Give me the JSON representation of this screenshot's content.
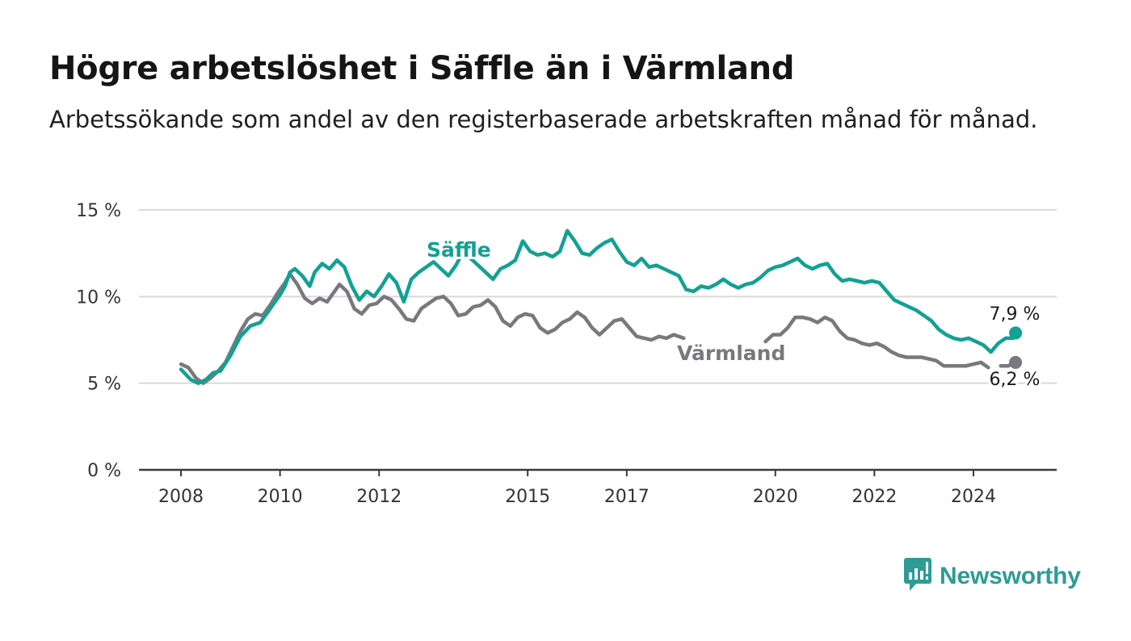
{
  "header": {
    "title": "Högre arbetslöshet i Säffle än i Värmland",
    "subtitle": "Arbetssökande som andel av den registerbaserade arbetskraften månad för månad."
  },
  "brand": {
    "name": "Newsworthy",
    "icon": "bar-chart-speech-bubble-icon",
    "color": "#2e9b95"
  },
  "chart_data": {
    "type": "line",
    "title": "Högre arbetslöshet i Säffle än i Värmland",
    "subtitle": "Arbetssökande som andel av den registerbaserade arbetskraften månad för månad.",
    "xlabel": "",
    "ylabel": "",
    "ylim": [
      0,
      15
    ],
    "xlim": [
      2007.2,
      2026.0
    ],
    "grid": true,
    "y_ticks": [
      {
        "value": 0,
        "label": "0 %"
      },
      {
        "value": 5,
        "label": "5 %"
      },
      {
        "value": 10,
        "label": "10 %"
      },
      {
        "value": 15,
        "label": "15 %"
      }
    ],
    "x_ticks": [
      {
        "value": 2008,
        "label": "2008"
      },
      {
        "value": 2010,
        "label": "2010"
      },
      {
        "value": 2012,
        "label": "2012"
      },
      {
        "value": 2015,
        "label": "2015"
      },
      {
        "value": 2017,
        "label": "2017"
      },
      {
        "value": 2020,
        "label": "2020"
      },
      {
        "value": 2022,
        "label": "2022"
      },
      {
        "value": 2024,
        "label": "2024"
      }
    ],
    "series": [
      {
        "name": "Säffle",
        "color": "#12a192",
        "end_label": "7,9 %",
        "points": [
          [
            2008.0,
            5.8
          ],
          [
            2008.2,
            5.2
          ],
          [
            2008.35,
            5.0
          ],
          [
            2008.5,
            5.2
          ],
          [
            2008.65,
            5.6
          ],
          [
            2008.8,
            5.7
          ],
          [
            2009.0,
            6.6
          ],
          [
            2009.2,
            7.7
          ],
          [
            2009.4,
            8.3
          ],
          [
            2009.6,
            8.5
          ],
          [
            2009.8,
            9.3
          ],
          [
            2010.0,
            10.1
          ],
          [
            2010.1,
            10.6
          ],
          [
            2010.2,
            11.4
          ],
          [
            2010.3,
            11.6
          ],
          [
            2010.45,
            11.2
          ],
          [
            2010.6,
            10.6
          ],
          [
            2010.7,
            11.4
          ],
          [
            2010.85,
            11.9
          ],
          [
            2011.0,
            11.6
          ],
          [
            2011.15,
            12.1
          ],
          [
            2011.3,
            11.7
          ],
          [
            2011.45,
            10.6
          ],
          [
            2011.6,
            9.8
          ],
          [
            2011.75,
            10.3
          ],
          [
            2011.9,
            10.0
          ],
          [
            2012.05,
            10.6
          ],
          [
            2012.2,
            11.3
          ],
          [
            2012.35,
            10.8
          ],
          [
            2012.5,
            9.7
          ],
          [
            2012.65,
            11.0
          ],
          [
            2012.8,
            11.4
          ],
          [
            2012.95,
            11.7
          ],
          [
            2013.1,
            12.0
          ],
          [
            2013.25,
            11.6
          ],
          [
            2013.4,
            11.2
          ],
          [
            2013.55,
            11.8
          ],
          [
            2013.7,
            12.6
          ],
          [
            2013.85,
            12.2
          ],
          [
            2014.0,
            11.8
          ],
          [
            2014.15,
            11.4
          ],
          [
            2014.3,
            11.0
          ],
          [
            2014.45,
            11.6
          ],
          [
            2014.6,
            11.8
          ],
          [
            2014.75,
            12.1
          ],
          [
            2014.9,
            13.2
          ],
          [
            2015.05,
            12.6
          ],
          [
            2015.2,
            12.4
          ],
          [
            2015.35,
            12.5
          ],
          [
            2015.5,
            12.3
          ],
          [
            2015.65,
            12.6
          ],
          [
            2015.8,
            13.8
          ],
          [
            2015.95,
            13.2
          ],
          [
            2016.1,
            12.5
          ],
          [
            2016.25,
            12.4
          ],
          [
            2016.4,
            12.8
          ],
          [
            2016.55,
            13.1
          ],
          [
            2016.7,
            13.3
          ],
          [
            2016.85,
            12.6
          ],
          [
            2017.0,
            12.0
          ],
          [
            2017.15,
            11.8
          ],
          [
            2017.3,
            12.2
          ],
          [
            2017.45,
            11.7
          ],
          [
            2017.6,
            11.8
          ],
          [
            2017.75,
            11.6
          ],
          [
            2017.9,
            11.4
          ],
          [
            2018.05,
            11.2
          ],
          [
            2018.2,
            10.4
          ],
          [
            2018.35,
            10.3
          ],
          [
            2018.5,
            10.6
          ],
          [
            2018.65,
            10.5
          ],
          [
            2018.8,
            10.7
          ],
          [
            2018.95,
            11.0
          ],
          [
            2019.1,
            10.7
          ],
          [
            2019.25,
            10.5
          ],
          [
            2019.4,
            10.7
          ],
          [
            2019.55,
            10.8
          ],
          [
            2019.7,
            11.1
          ],
          [
            2019.85,
            11.5
          ],
          [
            2020.0,
            11.7
          ],
          [
            2020.15,
            11.8
          ],
          [
            2020.3,
            12.0
          ],
          [
            2020.45,
            12.2
          ],
          [
            2020.6,
            11.8
          ],
          [
            2020.75,
            11.6
          ],
          [
            2020.9,
            11.8
          ],
          [
            2021.05,
            11.9
          ],
          [
            2021.2,
            11.3
          ],
          [
            2021.35,
            10.9
          ],
          [
            2021.5,
            11.0
          ],
          [
            2021.65,
            10.9
          ],
          [
            2021.8,
            10.8
          ],
          [
            2021.95,
            10.9
          ],
          [
            2022.1,
            10.8
          ],
          [
            2022.25,
            10.3
          ],
          [
            2022.4,
            9.8
          ],
          [
            2022.55,
            9.6
          ],
          [
            2022.7,
            9.4
          ],
          [
            2022.85,
            9.2
          ],
          [
            2023.0,
            8.9
          ],
          [
            2023.15,
            8.6
          ],
          [
            2023.3,
            8.1
          ],
          [
            2023.45,
            7.8
          ],
          [
            2023.6,
            7.6
          ],
          [
            2023.75,
            7.5
          ],
          [
            2023.9,
            7.6
          ],
          [
            2024.05,
            7.4
          ],
          [
            2024.2,
            7.2
          ],
          [
            2024.35,
            6.8
          ],
          [
            2024.5,
            7.3
          ],
          [
            2024.65,
            7.6
          ],
          [
            2024.8,
            7.6
          ],
          [
            2024.85,
            7.9
          ]
        ]
      },
      {
        "name": "Värmland",
        "color": "#7a787e",
        "end_label": "6,2 %",
        "segments": [
          [
            [
              2008.0,
              6.1
            ],
            [
              2008.15,
              5.9
            ],
            [
              2008.3,
              5.3
            ],
            [
              2008.45,
              5.0
            ],
            [
              2008.6,
              5.3
            ],
            [
              2008.75,
              5.7
            ],
            [
              2008.9,
              6.2
            ],
            [
              2009.05,
              7.1
            ],
            [
              2009.2,
              8.0
            ],
            [
              2009.35,
              8.7
            ],
            [
              2009.5,
              9.0
            ],
            [
              2009.65,
              8.9
            ],
            [
              2009.8,
              9.5
            ],
            [
              2009.95,
              10.2
            ],
            [
              2010.1,
              10.8
            ],
            [
              2010.2,
              11.3
            ],
            [
              2010.35,
              10.7
            ],
            [
              2010.5,
              9.9
            ],
            [
              2010.65,
              9.6
            ],
            [
              2010.8,
              9.9
            ],
            [
              2010.95,
              9.7
            ],
            [
              2011.1,
              10.3
            ],
            [
              2011.2,
              10.7
            ],
            [
              2011.35,
              10.3
            ],
            [
              2011.5,
              9.3
            ],
            [
              2011.65,
              9.0
            ],
            [
              2011.8,
              9.5
            ],
            [
              2011.95,
              9.6
            ],
            [
              2012.1,
              10.0
            ],
            [
              2012.25,
              9.8
            ],
            [
              2012.4,
              9.3
            ],
            [
              2012.55,
              8.7
            ],
            [
              2012.7,
              8.6
            ],
            [
              2012.85,
              9.3
            ],
            [
              2013.0,
              9.6
            ],
            [
              2013.15,
              9.9
            ],
            [
              2013.3,
              10.0
            ],
            [
              2013.45,
              9.6
            ],
            [
              2013.6,
              8.9
            ],
            [
              2013.75,
              9.0
            ],
            [
              2013.9,
              9.4
            ],
            [
              2014.05,
              9.5
            ],
            [
              2014.2,
              9.8
            ],
            [
              2014.35,
              9.4
            ],
            [
              2014.5,
              8.6
            ],
            [
              2014.65,
              8.3
            ],
            [
              2014.8,
              8.8
            ],
            [
              2014.95,
              9.0
            ],
            [
              2015.1,
              8.9
            ],
            [
              2015.25,
              8.2
            ],
            [
              2015.4,
              7.9
            ],
            [
              2015.55,
              8.1
            ],
            [
              2015.7,
              8.5
            ],
            [
              2015.85,
              8.7
            ],
            [
              2016.0,
              9.1
            ],
            [
              2016.15,
              8.8
            ],
            [
              2016.3,
              8.2
            ],
            [
              2016.45,
              7.8
            ],
            [
              2016.6,
              8.2
            ],
            [
              2016.75,
              8.6
            ],
            [
              2016.9,
              8.7
            ],
            [
              2017.05,
              8.2
            ],
            [
              2017.2,
              7.7
            ],
            [
              2017.35,
              7.6
            ],
            [
              2017.5,
              7.5
            ],
            [
              2017.65,
              7.7
            ],
            [
              2017.8,
              7.6
            ],
            [
              2017.95,
              7.8
            ],
            [
              2018.15,
              7.6
            ]
          ],
          [
            [
              2019.8,
              7.4
            ],
            [
              2019.95,
              7.8
            ],
            [
              2020.1,
              7.8
            ],
            [
              2020.25,
              8.2
            ],
            [
              2020.4,
              8.8
            ],
            [
              2020.55,
              8.8
            ],
            [
              2020.7,
              8.7
            ],
            [
              2020.85,
              8.5
            ],
            [
              2021.0,
              8.8
            ],
            [
              2021.15,
              8.6
            ],
            [
              2021.3,
              8.0
            ],
            [
              2021.45,
              7.6
            ],
            [
              2021.6,
              7.5
            ],
            [
              2021.75,
              7.3
            ],
            [
              2021.9,
              7.2
            ],
            [
              2022.05,
              7.3
            ],
            [
              2022.2,
              7.1
            ],
            [
              2022.35,
              6.8
            ],
            [
              2022.5,
              6.6
            ],
            [
              2022.65,
              6.5
            ],
            [
              2022.8,
              6.5
            ],
            [
              2022.95,
              6.5
            ],
            [
              2023.1,
              6.4
            ],
            [
              2023.25,
              6.3
            ],
            [
              2023.4,
              6.0
            ],
            [
              2023.55,
              6.0
            ],
            [
              2023.7,
              6.0
            ],
            [
              2023.85,
              6.0
            ],
            [
              2024.0,
              6.1
            ],
            [
              2024.15,
              6.2
            ],
            [
              2024.3,
              5.9
            ]
          ],
          [
            [
              2024.55,
              6.0
            ],
            [
              2024.7,
              6.0
            ],
            [
              2024.85,
              6.2
            ]
          ]
        ]
      }
    ]
  }
}
